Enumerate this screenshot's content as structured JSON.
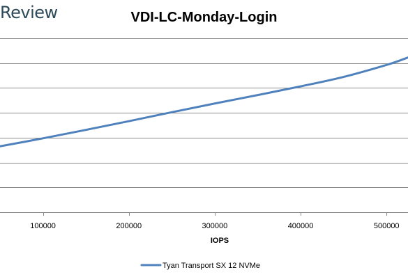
{
  "watermark": {
    "text": "Review"
  },
  "chart_data": {
    "type": "line",
    "title": "VDI-LC-Monday-Login",
    "xlabel": "IOPS",
    "ylabel": "",
    "xlim": [
      50000,
      525000
    ],
    "ylim": [
      0,
      8
    ],
    "x_ticks": [
      100000,
      200000,
      300000,
      400000,
      500000
    ],
    "y_gridlines": [
      1,
      2,
      3,
      4,
      5,
      6,
      7
    ],
    "grid": "horizontal",
    "legend_position": "bottom",
    "series": [
      {
        "name": "Tyan Transport SX 12 NVMe",
        "color": "#4f81bd",
        "x": [
          50000,
          100000,
          150000,
          200000,
          250000,
          300000,
          350000,
          400000,
          450000,
          500000,
          525000
        ],
        "y": [
          2.65,
          2.97,
          3.31,
          3.66,
          4.02,
          4.37,
          4.71,
          5.06,
          5.44,
          5.92,
          6.22
        ]
      }
    ]
  }
}
